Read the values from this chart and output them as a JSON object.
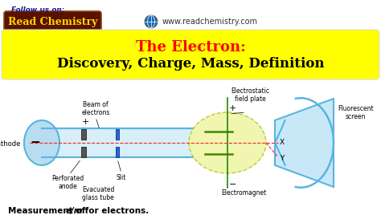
{
  "bg_color": "#ffffff",
  "yellow_box_color": "#ffff00",
  "yellow_box_title": "The Electron:",
  "yellow_box_subtitle": "Discovery, Charge, Mass, Definition",
  "title_color_red": "#ff0000",
  "title_color_black": "#000000",
  "follow_text": "Follow us on:",
  "brand_text": "Read Chemistry",
  "brand_bg": "#5a1200",
  "brand_text_color": "#FFD700",
  "website": "www.readchemistry.com",
  "bottom_caption": "Measurement of ",
  "bottom_em": "e/m",
  "bottom_rest": " for electrons.",
  "tube_color": "#5ab4e0",
  "screen_color": "#a8d8f0",
  "defl_fill": "#f0f5b0",
  "plate_color": "#448800",
  "diagram_labels": {
    "cathode": "Cathode",
    "perforated_anode": "Perforated\nanode",
    "evacuated": "Evacuated\nglass tube",
    "slit": "Slit",
    "beam": "Beam of\nelectrons",
    "electrostatic": "Electrostatic\nfield plate",
    "electromagnet": "Electromagnet",
    "fluorescent": "Fluorescent\nscreen",
    "X": "X",
    "Y": "Y",
    "plus_top": "+",
    "minus_bottom": "−",
    "plus_anode": "+",
    "minus_cathode": "−"
  }
}
